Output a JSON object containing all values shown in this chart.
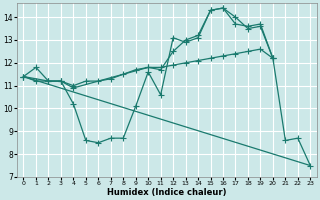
{
  "xlabel": "Humidex (Indice chaleur)",
  "xlim": [
    -0.5,
    23.5
  ],
  "ylim": [
    7,
    14.6
  ],
  "yticks": [
    7,
    8,
    9,
    10,
    11,
    12,
    13,
    14
  ],
  "xticks": [
    0,
    1,
    2,
    3,
    4,
    5,
    6,
    7,
    8,
    9,
    10,
    11,
    12,
    13,
    14,
    15,
    16,
    17,
    18,
    19,
    20,
    21,
    22,
    23
  ],
  "background_color": "#cce8e8",
  "grid_color": "#ffffff",
  "line_color": "#1a7a6e",
  "line1_x": [
    0,
    1,
    2,
    3,
    4,
    5,
    6,
    7,
    8,
    9,
    10,
    11,
    12,
    13,
    14,
    15,
    16,
    17,
    18,
    19,
    20,
    21,
    22,
    23
  ],
  "line1_y": [
    11.4,
    11.8,
    11.2,
    11.2,
    10.2,
    8.6,
    8.5,
    8.7,
    8.7,
    10.1,
    11.6,
    10.6,
    13.1,
    12.9,
    13.1,
    14.3,
    14.4,
    14.0,
    13.5,
    13.6,
    12.2,
    8.6,
    8.7,
    7.5
  ],
  "line2_x": [
    0,
    2,
    3,
    4,
    10,
    11,
    12,
    13,
    14,
    15,
    16,
    17,
    18,
    19,
    20
  ],
  "line2_y": [
    11.4,
    11.2,
    11.2,
    10.9,
    11.8,
    11.7,
    12.5,
    13.0,
    13.2,
    14.3,
    14.4,
    13.7,
    13.6,
    13.7,
    12.2
  ],
  "line3_x": [
    0,
    1,
    2,
    3,
    4,
    5,
    6,
    7,
    8,
    9,
    10,
    11,
    12,
    13,
    14,
    15,
    16,
    17,
    18,
    19,
    20
  ],
  "line3_y": [
    11.4,
    11.2,
    11.2,
    11.2,
    11.0,
    11.2,
    11.2,
    11.3,
    11.5,
    11.7,
    11.8,
    11.8,
    11.9,
    12.0,
    12.1,
    12.2,
    12.3,
    12.4,
    12.5,
    12.6,
    12.2
  ],
  "line4_x": [
    0,
    23
  ],
  "line4_y": [
    11.4,
    7.5
  ]
}
